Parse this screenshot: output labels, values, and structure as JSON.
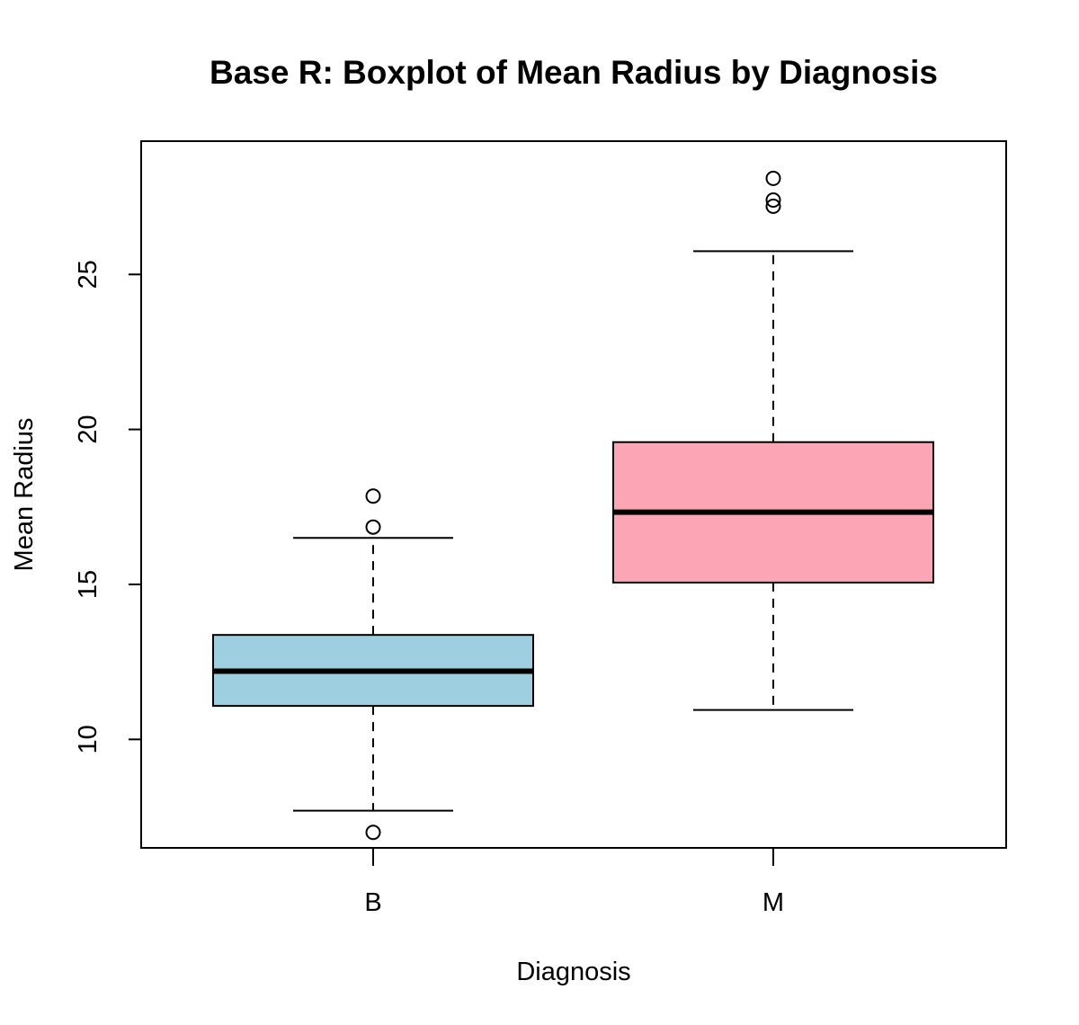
{
  "chart_data": {
    "type": "boxplot",
    "title": "Base R: Boxplot of Mean Radius by Diagnosis",
    "xlabel": "Diagnosis",
    "ylabel": "Mean Radius",
    "ylim": [
      6.5,
      29.3
    ],
    "yticks": [
      "10",
      "15",
      "20",
      "25"
    ],
    "grid": false,
    "legend": "none",
    "categories": [
      "B",
      "M"
    ],
    "groups": [
      {
        "category": "B",
        "fill": "#9ECFE0",
        "whisker_low": 7.7,
        "q1": 11.08,
        "median": 12.2,
        "q3": 13.37,
        "whisker_high": 16.5,
        "outliers": [
          7.0,
          16.85,
          17.85
        ]
      },
      {
        "category": "M",
        "fill": "#FCA5B4",
        "whisker_low": 10.95,
        "q1": 15.06,
        "median": 17.33,
        "q3": 19.59,
        "whisker_high": 25.75,
        "outliers": [
          27.2,
          27.4,
          28.1
        ]
      }
    ]
  }
}
